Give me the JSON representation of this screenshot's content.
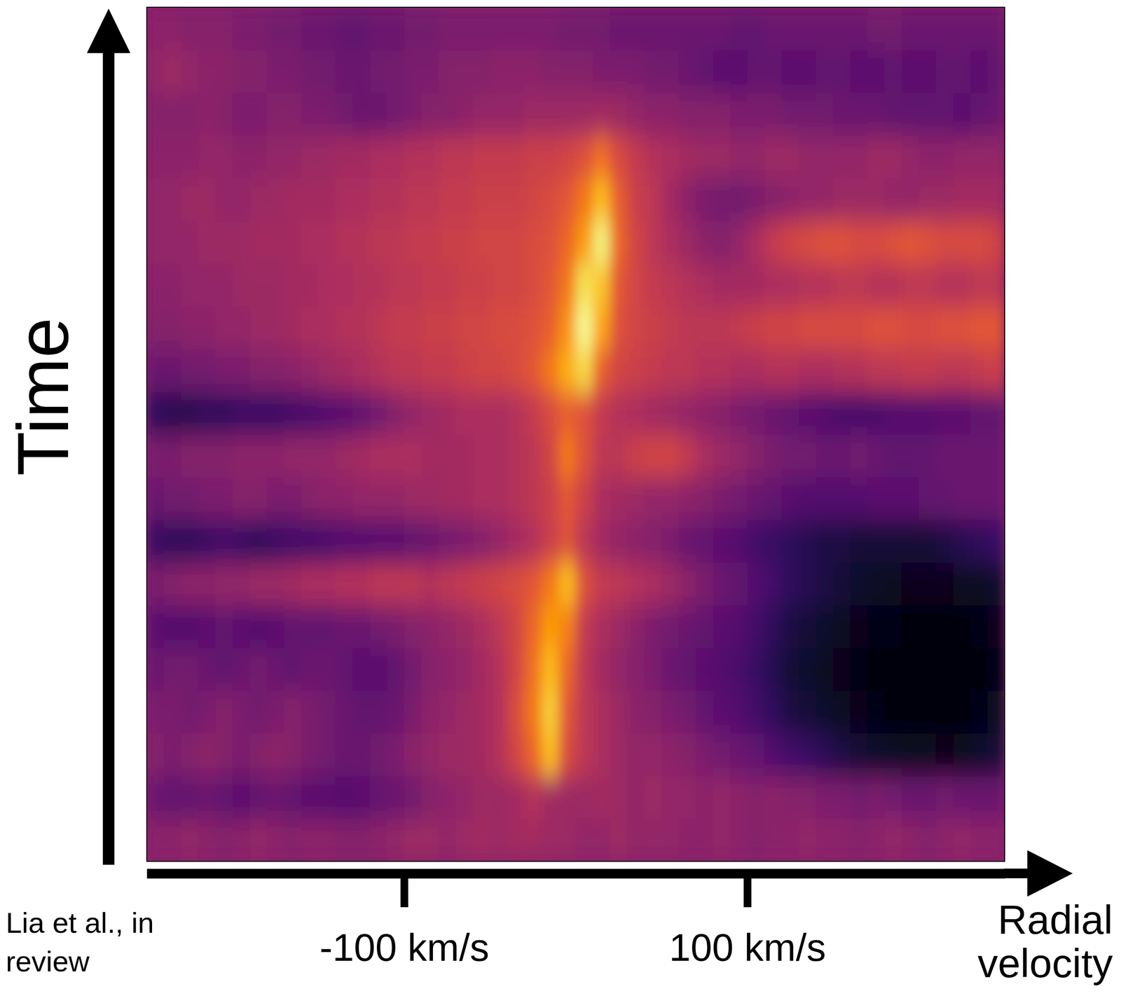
{
  "chart_data": {
    "type": "heatmap",
    "x_label": "Radial velocity",
    "y_label": "Time",
    "credit": "Lia et al., in review",
    "tick_labels": "x",
    "xlim": [
      -250,
      250
    ],
    "ylim": [
      -0.5,
      19.5
    ],
    "xticks": [
      {
        "value": -100,
        "label": "-100 km/s"
      },
      {
        "value": 100,
        "label": "100 km/s"
      }
    ],
    "zlim": [
      0,
      100
    ],
    "x": [
      -245,
      -235,
      -225,
      -215,
      -205,
      -195,
      -185,
      -175,
      -165,
      -155,
      -145,
      -135,
      -125,
      -115,
      -105,
      -95,
      -85,
      -75,
      -65,
      -55,
      -45,
      -35,
      -25,
      -15,
      -5,
      5,
      15,
      25,
      35,
      45,
      55,
      65,
      75,
      85,
      95,
      105,
      115,
      125,
      135,
      145,
      155,
      165,
      175,
      185,
      195,
      205,
      215,
      225,
      235,
      245
    ],
    "y": [
      0,
      1,
      2,
      3,
      4,
      5,
      6,
      7,
      8,
      9,
      10,
      11,
      12,
      13,
      14,
      15,
      16,
      17,
      18,
      19
    ],
    "z": [
      [
        38,
        38,
        40,
        38,
        36,
        38,
        40,
        38,
        36,
        38,
        38,
        36,
        36,
        38,
        40,
        42,
        42,
        40,
        42,
        44,
        42,
        44,
        44,
        42,
        42,
        40,
        40,
        42,
        40,
        40,
        40,
        38,
        38,
        40,
        38,
        36,
        38,
        38,
        40,
        38,
        38,
        36,
        38,
        40,
        38,
        36,
        38,
        40,
        38,
        38
      ],
      [
        30,
        28,
        28,
        30,
        28,
        26,
        28,
        30,
        28,
        26,
        26,
        24,
        26,
        28,
        30,
        32,
        36,
        38,
        40,
        42,
        42,
        44,
        48,
        44,
        42,
        42,
        44,
        42,
        40,
        42,
        40,
        40,
        38,
        40,
        38,
        36,
        38,
        36,
        36,
        34,
        34,
        32,
        34,
        32,
        30,
        30,
        32,
        30,
        30,
        30
      ],
      [
        36,
        34,
        36,
        38,
        36,
        34,
        36,
        38,
        36,
        34,
        32,
        30,
        30,
        32,
        34,
        38,
        40,
        42,
        42,
        44,
        48,
        56,
        66,
        84,
        58,
        50,
        46,
        42,
        40,
        40,
        38,
        36,
        34,
        32,
        30,
        28,
        24,
        20,
        18,
        15,
        12,
        10,
        8,
        7,
        6,
        6,
        5,
        6,
        8,
        10
      ],
      [
        34,
        34,
        32,
        34,
        36,
        34,
        32,
        34,
        36,
        34,
        32,
        30,
        28,
        28,
        30,
        34,
        38,
        40,
        42,
        44,
        48,
        58,
        70,
        88,
        62,
        50,
        46,
        42,
        38,
        36,
        34,
        32,
        28,
        26,
        24,
        20,
        16,
        12,
        10,
        8,
        6,
        5,
        4,
        3,
        3,
        2,
        2,
        3,
        4,
        6
      ],
      [
        30,
        32,
        32,
        30,
        28,
        30,
        32,
        30,
        28,
        30,
        30,
        28,
        26,
        26,
        28,
        32,
        36,
        38,
        40,
        44,
        48,
        56,
        68,
        84,
        66,
        50,
        44,
        40,
        36,
        34,
        30,
        28,
        26,
        24,
        22,
        18,
        14,
        10,
        8,
        6,
        5,
        4,
        3,
        3,
        2,
        2,
        2,
        2,
        3,
        4
      ],
      [
        26,
        24,
        24,
        26,
        28,
        26,
        24,
        26,
        28,
        28,
        28,
        30,
        30,
        32,
        34,
        36,
        38,
        40,
        42,
        46,
        50,
        56,
        66,
        78,
        72,
        52,
        46,
        42,
        38,
        34,
        32,
        30,
        28,
        26,
        24,
        20,
        16,
        12,
        10,
        8,
        6,
        5,
        4,
        4,
        3,
        3,
        3,
        3,
        4,
        5
      ],
      [
        34,
        36,
        38,
        38,
        40,
        40,
        42,
        42,
        44,
        46,
        46,
        48,
        48,
        50,
        50,
        50,
        48,
        50,
        52,
        54,
        56,
        58,
        62,
        70,
        84,
        60,
        52,
        50,
        48,
        46,
        42,
        38,
        34,
        30,
        28,
        24,
        20,
        16,
        14,
        12,
        10,
        8,
        7,
        6,
        5,
        5,
        5,
        6,
        6,
        8
      ],
      [
        18,
        16,
        16,
        18,
        20,
        18,
        16,
        18,
        20,
        20,
        22,
        24,
        24,
        26,
        26,
        28,
        30,
        32,
        34,
        36,
        40,
        44,
        48,
        54,
        60,
        50,
        44,
        40,
        38,
        36,
        34,
        30,
        28,
        26,
        24,
        20,
        18,
        16,
        14,
        12,
        12,
        10,
        10,
        10,
        10,
        10,
        12,
        14,
        16,
        18
      ],
      [
        30,
        32,
        32,
        34,
        34,
        36,
        36,
        34,
        34,
        36,
        38,
        38,
        40,
        40,
        40,
        42,
        42,
        44,
        44,
        46,
        46,
        48,
        50,
        54,
        62,
        54,
        46,
        44,
        42,
        40,
        40,
        38,
        36,
        34,
        32,
        30,
        28,
        26,
        24,
        24,
        24,
        24,
        26,
        26,
        26,
        28,
        28,
        30,
        30,
        30
      ],
      [
        34,
        34,
        36,
        36,
        36,
        38,
        38,
        38,
        40,
        40,
        40,
        42,
        44,
        46,
        46,
        46,
        44,
        44,
        44,
        46,
        46,
        48,
        50,
        56,
        70,
        60,
        50,
        50,
        54,
        56,
        56,
        52,
        46,
        42,
        40,
        36,
        34,
        32,
        32,
        30,
        30,
        32,
        30,
        28,
        28,
        28,
        30,
        30,
        30,
        30
      ],
      [
        16,
        14,
        14,
        16,
        16,
        18,
        18,
        18,
        20,
        22,
        24,
        26,
        28,
        32,
        36,
        40,
        42,
        44,
        46,
        46,
        46,
        48,
        52,
        58,
        64,
        60,
        52,
        48,
        46,
        44,
        42,
        40,
        38,
        36,
        34,
        32,
        30,
        28,
        26,
        24,
        22,
        22,
        22,
        24,
        24,
        24,
        26,
        26,
        28,
        28
      ],
      [
        30,
        30,
        32,
        32,
        34,
        34,
        36,
        36,
        38,
        40,
        42,
        44,
        46,
        48,
        50,
        50,
        52,
        52,
        54,
        56,
        56,
        58,
        62,
        70,
        82,
        90,
        64,
        56,
        54,
        52,
        50,
        50,
        48,
        48,
        46,
        46,
        48,
        48,
        46,
        46,
        48,
        48,
        50,
        50,
        52,
        52,
        50,
        50,
        52,
        54
      ],
      [
        36,
        36,
        38,
        38,
        40,
        40,
        42,
        42,
        44,
        46,
        46,
        48,
        48,
        50,
        52,
        52,
        54,
        54,
        56,
        56,
        58,
        58,
        60,
        64,
        76,
        98,
        80,
        60,
        56,
        54,
        52,
        50,
        50,
        50,
        52,
        54,
        56,
        56,
        58,
        58,
        58,
        58,
        60,
        60,
        58,
        58,
        60,
        60,
        62,
        62
      ],
      [
        38,
        38,
        40,
        40,
        40,
        42,
        42,
        42,
        44,
        44,
        46,
        46,
        48,
        48,
        50,
        50,
        52,
        52,
        54,
        54,
        56,
        56,
        58,
        62,
        70,
        92,
        86,
        62,
        56,
        52,
        50,
        48,
        46,
        44,
        44,
        44,
        46,
        46,
        48,
        48,
        50,
        50,
        48,
        48,
        50,
        50,
        48,
        48,
        50,
        50
      ],
      [
        40,
        40,
        40,
        42,
        42,
        42,
        44,
        44,
        44,
        46,
        46,
        48,
        48,
        50,
        50,
        52,
        52,
        54,
        54,
        56,
        56,
        56,
        58,
        60,
        66,
        78,
        96,
        66,
        56,
        50,
        46,
        42,
        38,
        36,
        40,
        46,
        52,
        56,
        58,
        60,
        60,
        58,
        58,
        60,
        62,
        60,
        58,
        58,
        58,
        56
      ],
      [
        40,
        40,
        42,
        42,
        40,
        40,
        42,
        42,
        44,
        44,
        44,
        46,
        46,
        48,
        48,
        50,
        50,
        52,
        52,
        54,
        54,
        54,
        56,
        58,
        62,
        70,
        84,
        64,
        54,
        50,
        44,
        38,
        34,
        32,
        32,
        34,
        36,
        38,
        40,
        40,
        42,
        42,
        42,
        40,
        40,
        42,
        42,
        44,
        44,
        44
      ],
      [
        38,
        38,
        38,
        40,
        40,
        38,
        38,
        40,
        40,
        42,
        42,
        44,
        44,
        46,
        46,
        48,
        48,
        50,
        50,
        52,
        52,
        52,
        54,
        54,
        56,
        60,
        68,
        58,
        52,
        48,
        46,
        44,
        42,
        42,
        40,
        40,
        42,
        42,
        40,
        40,
        40,
        40,
        42,
        42,
        40,
        38,
        38,
        40,
        40,
        40
      ],
      [
        36,
        36,
        36,
        38,
        36,
        34,
        34,
        36,
        36,
        34,
        34,
        32,
        30,
        30,
        32,
        34,
        36,
        36,
        38,
        40,
        40,
        40,
        42,
        42,
        42,
        42,
        44,
        42,
        40,
        38,
        38,
        36,
        36,
        36,
        34,
        34,
        34,
        32,
        32,
        32,
        30,
        30,
        30,
        28,
        28,
        28,
        28,
        26,
        28,
        30
      ],
      [
        40,
        42,
        40,
        38,
        38,
        36,
        36,
        34,
        34,
        32,
        32,
        30,
        30,
        32,
        32,
        34,
        34,
        36,
        36,
        36,
        38,
        38,
        38,
        36,
        36,
        36,
        34,
        34,
        34,
        32,
        32,
        30,
        28,
        26,
        26,
        28,
        28,
        26,
        26,
        28,
        28,
        26,
        26,
        28,
        26,
        26,
        28,
        28,
        26,
        28
      ],
      [
        38,
        38,
        36,
        36,
        36,
        34,
        34,
        32,
        32,
        30,
        30,
        28,
        28,
        30,
        30,
        32,
        32,
        34,
        34,
        34,
        34,
        34,
        34,
        34,
        32,
        32,
        32,
        30,
        30,
        30,
        30,
        30,
        30,
        30,
        28,
        28,
        30,
        30,
        30,
        30,
        30,
        30,
        32,
        32,
        30,
        30,
        30,
        30,
        30,
        30
      ]
    ]
  }
}
